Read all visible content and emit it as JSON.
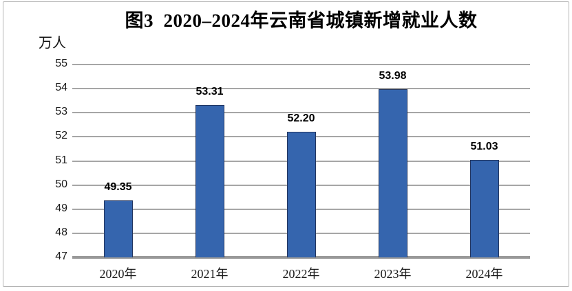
{
  "page": {
    "background_color": "#ffffff",
    "frame_border_color": "#b3b3b3"
  },
  "chart_data": {
    "type": "bar",
    "title": "图3  2020–2024年云南省城镇新增就业人数",
    "unit_label": "万人",
    "categories": [
      "2020年",
      "2021年",
      "2022年",
      "2023年",
      "2024年"
    ],
    "values": [
      49.35,
      53.31,
      52.2,
      53.98,
      51.03
    ],
    "value_labels": [
      "49.35",
      "53.31",
      "52.20",
      "53.98",
      "51.03"
    ],
    "xlabel": "",
    "ylabel": "万人",
    "ylim": [
      47,
      55
    ],
    "yticks": [
      47,
      48,
      49,
      50,
      51,
      52,
      53,
      54,
      55
    ],
    "grid": true,
    "legend": "none",
    "bar_color": "#3565AE",
    "bar_border_color": "#22355F",
    "gridline_color": "#a6a6a6",
    "axis_line_color": "#999999"
  }
}
